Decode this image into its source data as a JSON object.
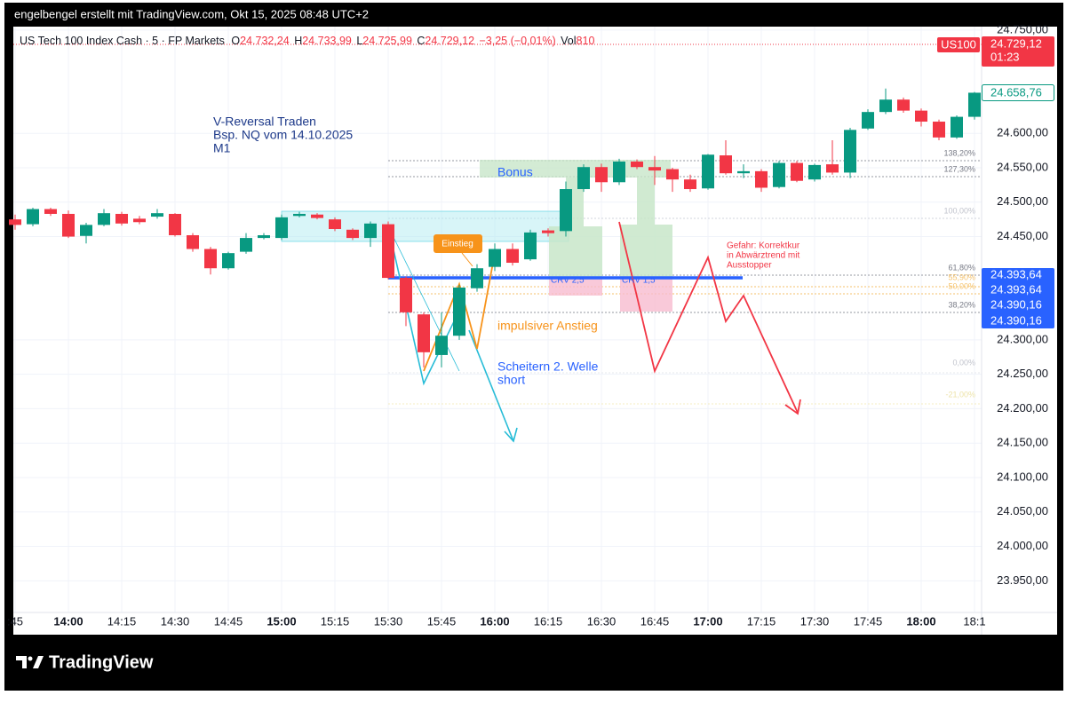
{
  "header": {
    "credit": "engelbengel erstellt mit TradingView.com, Okt 15, 2025 08:48 UTC+2"
  },
  "legend": {
    "symbol": "US Tech 100 Index Cash · 5 · FP Markets",
    "items": [
      {
        "key": "O",
        "value": "24.732,24"
      },
      {
        "key": "H",
        "value": "24.733,99"
      },
      {
        "key": "L",
        "value": "24.725,99"
      },
      {
        "key": "C",
        "value": "24.729,12"
      }
    ],
    "change": "−3,25 (−0,01%)",
    "volume_key": "Vol",
    "volume": "810"
  },
  "price_tags": {
    "symbol": "US100",
    "last_price": "24.729,12",
    "countdown": "01:23",
    "chart_price": "24.658,76",
    "levels": [
      "24.393,64",
      "24.393,64",
      "24.390,16",
      "24.390,16"
    ]
  },
  "footer": {
    "brand": "TradingView"
  },
  "chart_data": {
    "type": "candlestick",
    "categories": [
      ":45",
      null,
      null,
      "14:00",
      null,
      null,
      "14:15",
      null,
      null,
      "14:30",
      null,
      null,
      "14:45",
      null,
      null,
      "15:00",
      null,
      null,
      "15:15",
      null,
      null,
      "15:30",
      null,
      null,
      "15:45",
      null,
      null,
      "16:00",
      null,
      null,
      "16:15",
      null,
      null,
      "16:30",
      null,
      null,
      "16:45",
      null,
      null,
      "17:00",
      null,
      null,
      "17:15",
      null,
      null,
      "17:30",
      null,
      null,
      "17:45",
      null,
      null,
      "18:00",
      null,
      null,
      "18:1"
    ],
    "open": [
      24475,
      24468,
      24490,
      24483,
      24451,
      24467,
      24483,
      24476,
      24479,
      24483,
      24452,
      24432,
      24404,
      24428,
      24448,
      24448,
      24480,
      24482,
      24475,
      24460,
      24448,
      24468,
      24390,
      24337,
      24278,
      24306,
      24375,
      24406,
      24432,
      24417,
      24459,
      24458,
      24519,
      24551,
      24529,
      24559,
      24551,
      24548,
      24533,
      24520,
      24568,
      24542,
      24545,
      24522,
      24557,
      24533,
      24555,
      24543,
      24607,
      24631,
      24649,
      24633,
      24617,
      24594,
      24624
    ],
    "high": [
      24482,
      24492,
      24492,
      24488,
      24470,
      24490,
      24486,
      24480,
      24490,
      24484,
      24455,
      24435,
      24428,
      24455,
      24455,
      24482,
      24486,
      24484,
      24478,
      24462,
      24472,
      24472,
      24392,
      24340,
      24340,
      24380,
      24410,
      24440,
      24440,
      24460,
      24462,
      24530,
      24555,
      24556,
      24563,
      24562,
      24567,
      24550,
      24540,
      24570,
      24590,
      24555,
      24548,
      24560,
      24560,
      24556,
      24590,
      24608,
      24635,
      24665,
      24652,
      24636,
      24620,
      24626,
      24660
    ],
    "low": [
      24460,
      24465,
      24480,
      24448,
      24440,
      24465,
      24466,
      24468,
      24476,
      24450,
      24428,
      24395,
      24402,
      24425,
      24446,
      24445,
      24478,
      24475,
      24458,
      24445,
      24435,
      24388,
      24320,
      24260,
      24260,
      24300,
      24370,
      24400,
      24408,
      24415,
      24450,
      24450,
      24515,
      24515,
      24525,
      24548,
      24525,
      24515,
      24515,
      24518,
      24540,
      24535,
      24515,
      24520,
      24529,
      24530,
      24540,
      24535,
      24605,
      24628,
      24630,
      24610,
      24590,
      24592,
      24620
    ],
    "close": [
      24467,
      24490,
      24483,
      24450,
      24467,
      24484,
      24469,
      24471,
      24484,
      24452,
      24432,
      24404,
      24426,
      24448,
      24452,
      24478,
      24483,
      24477,
      24461,
      24448,
      24469,
      24390,
      24340,
      24282,
      24306,
      24376,
      24404,
      24432,
      24412,
      24456,
      24455,
      24519,
      24551,
      24529,
      24559,
      24551,
      24546,
      24533,
      24519,
      24569,
      24542,
      24545,
      24521,
      24557,
      24531,
      24554,
      24543,
      24605,
      24631,
      24649,
      24633,
      24617,
      24594,
      24624,
      24659
    ],
    "up_color": "#089981",
    "down_color": "#f23645",
    "ylim": [
      23904,
      24755
    ],
    "yticks": [
      {
        "value": 24750,
        "label": "24.750,00"
      },
      {
        "value": 24600,
        "label": "24.600,00"
      },
      {
        "value": 24550,
        "label": "24.550,00"
      },
      {
        "value": 24500,
        "label": "24.500,00"
      },
      {
        "value": 24450,
        "label": "24.450,00"
      },
      {
        "value": 24300,
        "label": "24.300,00"
      },
      {
        "value": 24250,
        "label": "24.250,00"
      },
      {
        "value": 24200,
        "label": "24.200,00"
      },
      {
        "value": 24150,
        "label": "24.150,00"
      },
      {
        "value": 24100,
        "label": "24.100,00"
      },
      {
        "value": 24050,
        "label": "24.050,00"
      },
      {
        "value": 24000,
        "label": "24.000,00"
      },
      {
        "value": 23950,
        "label": "23.950,00"
      }
    ],
    "grid": true,
    "fib_labels": [
      "138,20%",
      "127,30%",
      "100,00%",
      "61,80%",
      "55,90%",
      "50,00%",
      "38,20%",
      "0,00%",
      "-21,00%"
    ],
    "annotations": {
      "title": [
        "V-Reversal Traden",
        "Bsp. NQ vom 14.10.2025",
        "M1"
      ],
      "bonus": "Bonus",
      "entry": "Einstieg",
      "impulse": "impulsiver Anstieg",
      "fail": [
        "Scheitern 2. Welle",
        "short"
      ],
      "crv_a": "CRV 2,5",
      "crv_b": "CRV 1,5",
      "danger": [
        "Gefahr: Korrektkur",
        "in Abwärztrend mit",
        "Ausstopper"
      ]
    }
  }
}
